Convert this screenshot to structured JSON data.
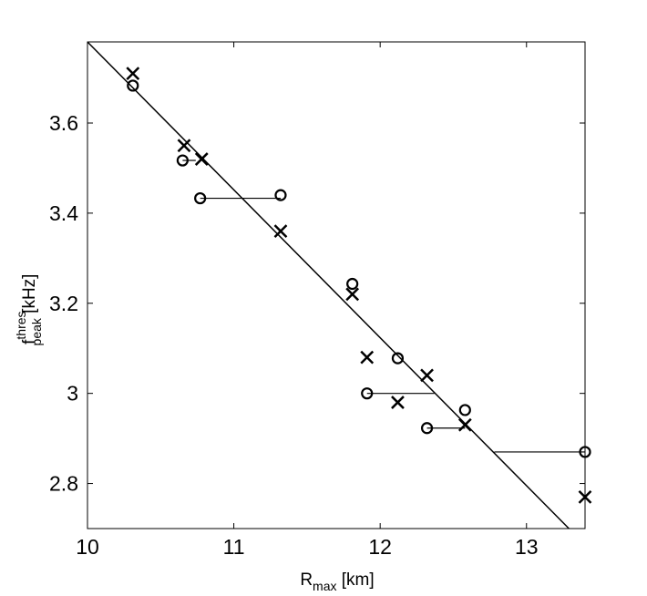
{
  "chart_data": {
    "type": "scatter",
    "title": "",
    "xlabel": {
      "main": "R",
      "sub": "max",
      "rest": " [km]"
    },
    "ylabel": {
      "main": "f",
      "sup": "thres",
      "sub": "peak",
      "rest": " [kHz]"
    },
    "xlim": [
      10,
      13.4
    ],
    "ylim": [
      2.7,
      3.78
    ],
    "x_ticks": [
      10,
      11,
      12,
      13
    ],
    "x_tick_labels": [
      "10",
      "11",
      "12",
      "13"
    ],
    "y_ticks": [
      2.8,
      3.0,
      3.2,
      3.4,
      3.6
    ],
    "y_tick_labels": [
      "2.8",
      "3",
      "3.2",
      "3.4",
      "3.6"
    ],
    "grid": false,
    "fit_line": {
      "x": [
        10.0,
        13.29
      ],
      "y": [
        3.78,
        2.7
      ]
    },
    "series": [
      {
        "marker": "x",
        "points": [
          [
            10.31,
            3.71
          ],
          [
            10.66,
            3.55
          ],
          [
            10.78,
            3.52
          ],
          [
            11.32,
            3.36
          ],
          [
            11.81,
            3.22
          ],
          [
            11.91,
            3.08
          ],
          [
            12.12,
            2.98
          ],
          [
            12.32,
            3.04
          ],
          [
            12.58,
            2.93
          ],
          [
            13.4,
            2.77
          ]
        ]
      },
      {
        "marker": "o",
        "points": [
          [
            10.31,
            3.683
          ],
          [
            10.65,
            3.517
          ],
          [
            10.77,
            3.433
          ],
          [
            11.32,
            3.44
          ],
          [
            11.81,
            3.243
          ],
          [
            11.91,
            3.0
          ],
          [
            12.12,
            3.078
          ],
          [
            12.32,
            2.923
          ],
          [
            12.58,
            2.963
          ],
          [
            13.4,
            2.87
          ]
        ]
      }
    ],
    "residual_segments": [
      {
        "x": [
          10.65,
          10.74
        ],
        "y": 3.517
      },
      {
        "x": [
          10.77,
          11.32
        ],
        "y": 3.433
      },
      {
        "x": [
          11.81,
          11.81
        ],
        "y": 3.243
      },
      {
        "x": [
          11.91,
          12.37
        ],
        "y": 3.0
      },
      {
        "x": [
          12.32,
          12.58
        ],
        "y": 2.923
      },
      {
        "x": [
          12.58,
          12.58
        ],
        "y": 2.963
      },
      {
        "x": [
          13.4,
          12.78
        ],
        "y": 2.87
      }
    ]
  }
}
